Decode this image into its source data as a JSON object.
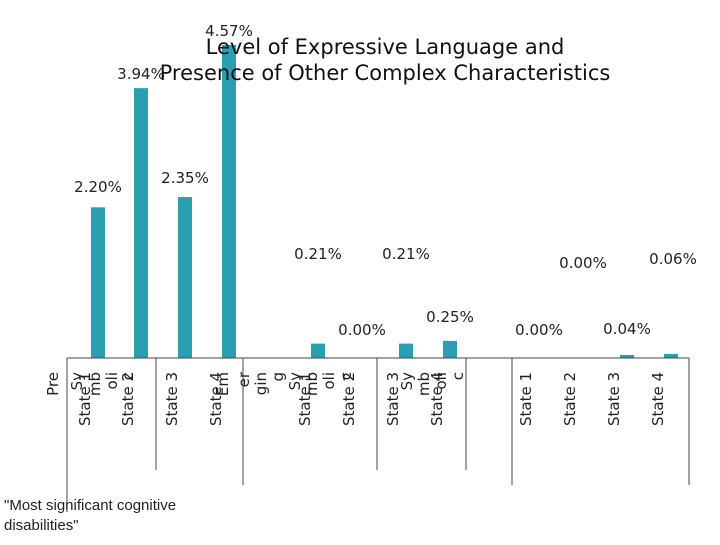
{
  "chart_data": {
    "type": "bar",
    "title_lines": [
      "Level of Expressive Language and",
      "Presence of Other Complex Characteristics"
    ],
    "groups": [
      {
        "name": "Pre Sy mb oli c"
      },
      {
        "name": "Em er gin g Sy mb oli c"
      },
      {
        "name": "Sy mb oli c"
      },
      {
        "name": ""
      }
    ],
    "categories": [
      "State 1",
      "State 2",
      "State 3",
      "State 4",
      "State 1",
      "State 2",
      "State 3",
      "State 4",
      "State 1",
      "State 2",
      "State 3",
      "State 4"
    ],
    "values": [
      2.2,
      3.94,
      2.35,
      4.57,
      0.21,
      0.0,
      0.21,
      0.25,
      0.0,
      0.0,
      0.04,
      0.06
    ],
    "labels": [
      "2.20%",
      "3.94%",
      "2.35%",
      "4.57%",
      "0.21%",
      "0.00%",
      "0.21%",
      "0.25%",
      "0.00%",
      "0.00%",
      "0.04%",
      "0.06%"
    ],
    "ylim": [
      0,
      5
    ],
    "bar_color": "#2a9fb0",
    "grid": false,
    "legend": "none",
    "footnote": "\"Most significant cognitive disabilities\""
  }
}
